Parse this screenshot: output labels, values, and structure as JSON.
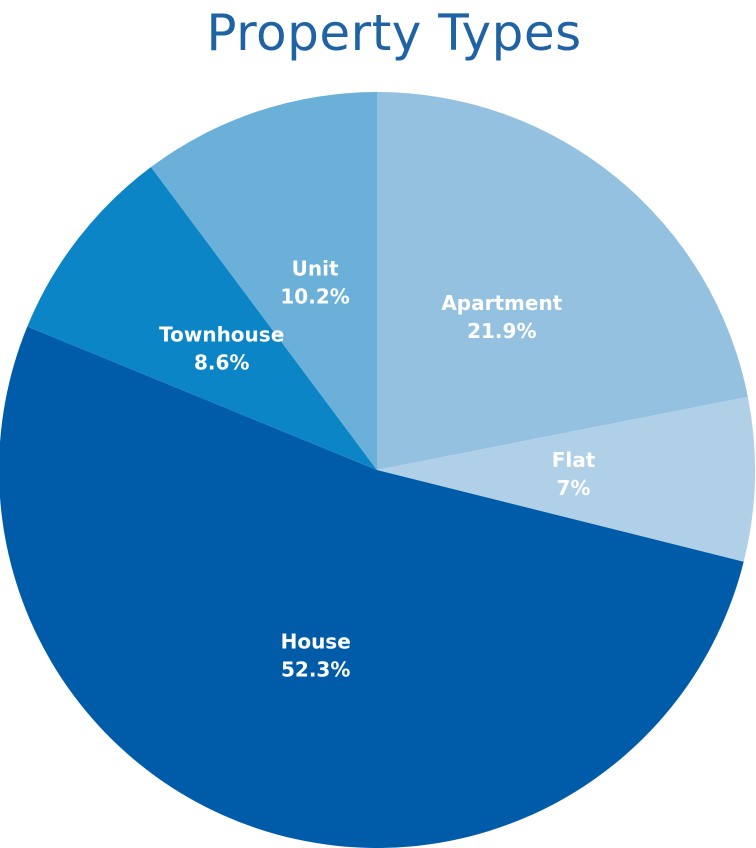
{
  "colors": {
    "title": "#1f63a5",
    "slice_edge": "#ffffff"
  },
  "chart_data": {
    "type": "pie",
    "title": "Property Types",
    "slices": [
      {
        "label": "Apartment",
        "percent_label": "21.9%",
        "value": 21.9,
        "color": "#94c1e0"
      },
      {
        "label": "Flat",
        "percent_label": "7%",
        "value": 7.0,
        "color": "#b0d0e8"
      },
      {
        "label": "House",
        "percent_label": "52.3%",
        "value": 52.3,
        "color": "#005ca9"
      },
      {
        "label": "Townhouse",
        "percent_label": "8.6%",
        "value": 8.6,
        "color": "#0b85c6"
      },
      {
        "label": "Unit",
        "percent_label": "10.2%",
        "value": 10.2,
        "color": "#6bb0d9"
      }
    ]
  }
}
